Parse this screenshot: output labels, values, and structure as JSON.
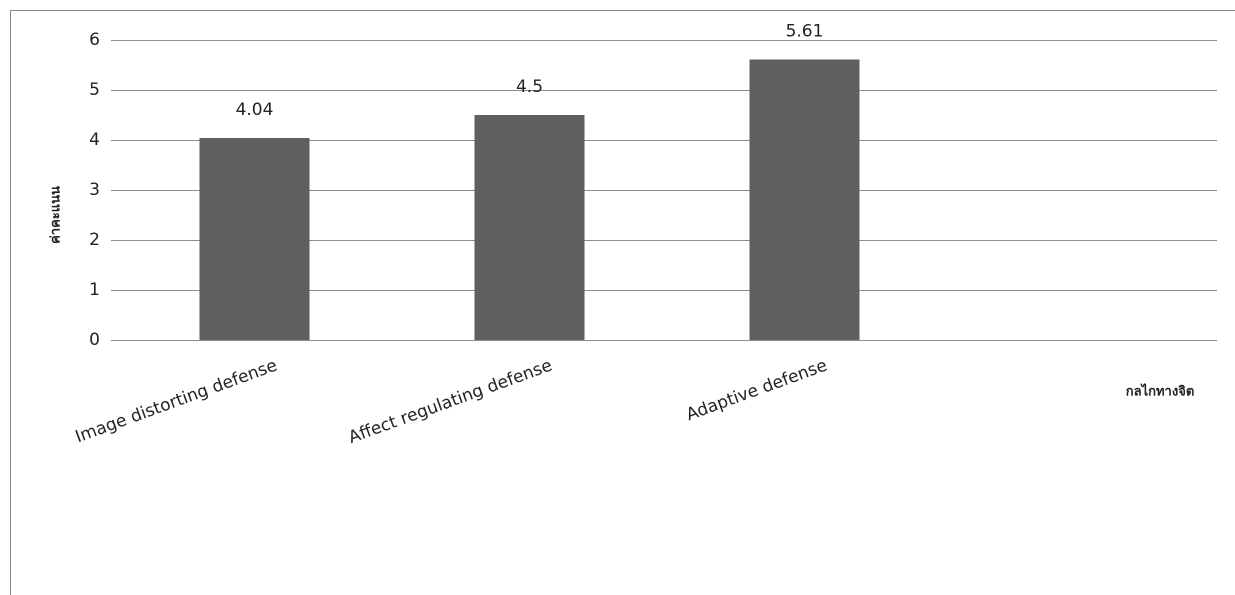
{
  "chart_data": {
    "type": "bar",
    "x_label": "กลไกทางจิต",
    "y_label": "ค่าคะแนน",
    "categories": [
      "Image distorting defense",
      "Affect regulating defense",
      "Adaptive defense",
      null
    ],
    "values": [
      4.04,
      4.5,
      5.61,
      null
    ],
    "color": "#5f5f5f",
    "ylim": [
      0,
      6
    ],
    "yticks": [
      0,
      1,
      2,
      3,
      4,
      5,
      6
    ],
    "grid": true
  }
}
